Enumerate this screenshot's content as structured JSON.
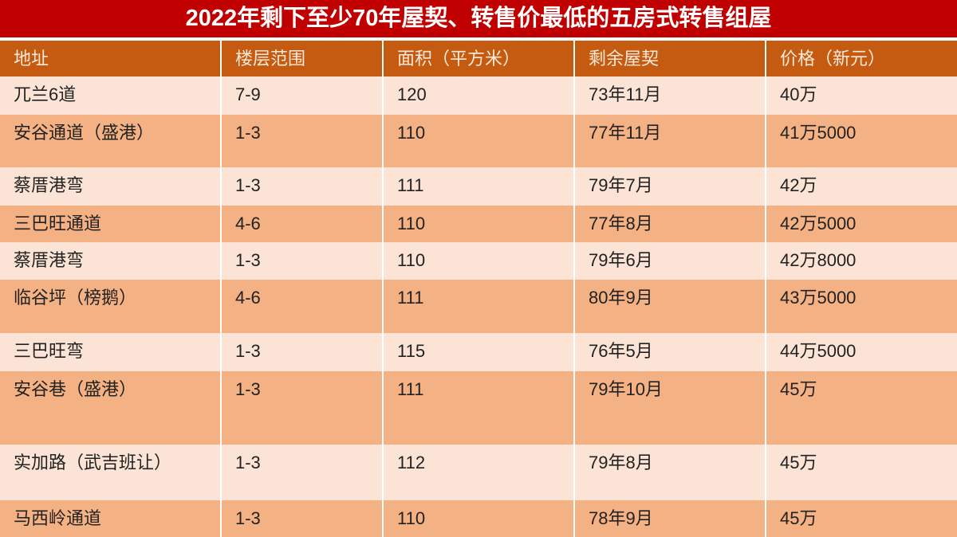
{
  "title": "2022年剩下至少70年屋契、转售价最低的五房式转售组屋",
  "colors": {
    "title_bg": "#c00000",
    "header_bg": "#c55a11",
    "row_light": "#fbe4d5",
    "row_dark": "#f4b183"
  },
  "columns": [
    "地址",
    "楼层范围",
    "面积（平方米）",
    "剩余屋契",
    "价格（新元）"
  ],
  "rows": [
    [
      "兀兰6道",
      "7-9",
      "120",
      "73年11月",
      "40万"
    ],
    [
      "安谷通道（盛港）",
      "1-3",
      "110",
      "77年11月",
      "41万5000"
    ],
    [
      "蔡厝港弯",
      "1-3",
      "111",
      "79年7月",
      "42万"
    ],
    [
      "三巴旺通道",
      "4-6",
      "110",
      "77年8月",
      "42万5000"
    ],
    [
      "蔡厝港弯",
      "1-3",
      "110",
      "79年6月",
      "42万8000"
    ],
    [
      "临谷坪（榜鹅）",
      "4-6",
      "111",
      "80年9月",
      "43万5000"
    ],
    [
      "三巴旺弯",
      "1-3",
      "115",
      "76年5月",
      "44万5000"
    ],
    [
      "安谷巷（盛港）",
      "1-3",
      "111",
      "79年10月",
      "45万"
    ],
    [
      "实加路（武吉班让）",
      "1-3",
      "112",
      "79年8月",
      "45万"
    ],
    [
      "马西岭通道",
      "1-3",
      "110",
      "78年9月",
      "45万"
    ]
  ]
}
